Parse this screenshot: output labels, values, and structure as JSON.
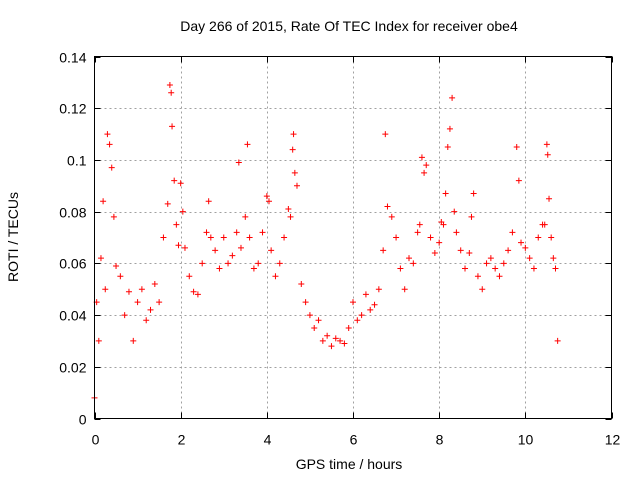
{
  "chart_data": {
    "type": "scatter",
    "title": "Day 266 of 2015, Rate Of TEC Index for receiver obe4",
    "xlabel": "GPS time / hours",
    "ylabel": "ROTI / TECUs",
    "xlim": [
      0,
      12
    ],
    "ylim": [
      0,
      0.14
    ],
    "xticks": [
      0,
      2,
      4,
      6,
      8,
      10,
      12
    ],
    "xtick_labels": [
      "0",
      "2",
      "4",
      "6",
      "8",
      "10",
      "12"
    ],
    "yticks": [
      0,
      0.02,
      0.04,
      0.06,
      0.08,
      0.1,
      0.12,
      0.14
    ],
    "ytick_labels": [
      "0",
      "0.02",
      "0.04",
      "0.06",
      "0.08",
      "0.1",
      "0.12",
      "0.14"
    ],
    "grid": true,
    "marker": "+",
    "series_color": "#ff0000",
    "series": [
      {
        "name": "ROTI",
        "points": [
          [
            0.0,
            0.008
          ],
          [
            0.05,
            0.045
          ],
          [
            0.1,
            0.03
          ],
          [
            0.15,
            0.062
          ],
          [
            0.2,
            0.084
          ],
          [
            0.25,
            0.05
          ],
          [
            0.3,
            0.11
          ],
          [
            0.35,
            0.106
          ],
          [
            0.4,
            0.097
          ],
          [
            0.45,
            0.078
          ],
          [
            0.5,
            0.059
          ],
          [
            0.6,
            0.055
          ],
          [
            0.7,
            0.04
          ],
          [
            0.8,
            0.049
          ],
          [
            0.9,
            0.03
          ],
          [
            1.0,
            0.045
          ],
          [
            1.1,
            0.05
          ],
          [
            1.2,
            0.038
          ],
          [
            1.3,
            0.042
          ],
          [
            1.4,
            0.052
          ],
          [
            1.5,
            0.045
          ],
          [
            1.6,
            0.07
          ],
          [
            1.7,
            0.083
          ],
          [
            1.75,
            0.129
          ],
          [
            1.78,
            0.126
          ],
          [
            1.8,
            0.113
          ],
          [
            1.85,
            0.092
          ],
          [
            1.9,
            0.075
          ],
          [
            1.95,
            0.067
          ],
          [
            2.0,
            0.091
          ],
          [
            2.05,
            0.08
          ],
          [
            2.1,
            0.066
          ],
          [
            2.2,
            0.055
          ],
          [
            2.3,
            0.049
          ],
          [
            2.4,
            0.048
          ],
          [
            2.5,
            0.06
          ],
          [
            2.6,
            0.072
          ],
          [
            2.65,
            0.084
          ],
          [
            2.7,
            0.07
          ],
          [
            2.8,
            0.065
          ],
          [
            2.9,
            0.058
          ],
          [
            3.0,
            0.07
          ],
          [
            3.1,
            0.06
          ],
          [
            3.2,
            0.063
          ],
          [
            3.3,
            0.072
          ],
          [
            3.35,
            0.099
          ],
          [
            3.4,
            0.066
          ],
          [
            3.5,
            0.078
          ],
          [
            3.55,
            0.106
          ],
          [
            3.6,
            0.07
          ],
          [
            3.7,
            0.058
          ],
          [
            3.8,
            0.06
          ],
          [
            3.9,
            0.072
          ],
          [
            4.0,
            0.086
          ],
          [
            4.05,
            0.084
          ],
          [
            4.1,
            0.065
          ],
          [
            4.2,
            0.055
          ],
          [
            4.3,
            0.06
          ],
          [
            4.4,
            0.07
          ],
          [
            4.5,
            0.081
          ],
          [
            4.55,
            0.078
          ],
          [
            4.6,
            0.104
          ],
          [
            4.62,
            0.11
          ],
          [
            4.65,
            0.095
          ],
          [
            4.7,
            0.09
          ],
          [
            4.8,
            0.052
          ],
          [
            4.9,
            0.045
          ],
          [
            5.0,
            0.04
          ],
          [
            5.1,
            0.035
          ],
          [
            5.2,
            0.038
          ],
          [
            5.3,
            0.03
          ],
          [
            5.4,
            0.032
          ],
          [
            5.5,
            0.028
          ],
          [
            5.6,
            0.031
          ],
          [
            5.7,
            0.03
          ],
          [
            5.8,
            0.029
          ],
          [
            5.9,
            0.035
          ],
          [
            6.0,
            0.045
          ],
          [
            6.1,
            0.038
          ],
          [
            6.2,
            0.04
          ],
          [
            6.3,
            0.048
          ],
          [
            6.4,
            0.042
          ],
          [
            6.5,
            0.044
          ],
          [
            6.6,
            0.05
          ],
          [
            6.7,
            0.065
          ],
          [
            6.75,
            0.11
          ],
          [
            6.8,
            0.082
          ],
          [
            6.9,
            0.078
          ],
          [
            7.0,
            0.07
          ],
          [
            7.1,
            0.058
          ],
          [
            7.2,
            0.05
          ],
          [
            7.3,
            0.062
          ],
          [
            7.4,
            0.06
          ],
          [
            7.5,
            0.072
          ],
          [
            7.55,
            0.075
          ],
          [
            7.6,
            0.101
          ],
          [
            7.65,
            0.095
          ],
          [
            7.7,
            0.098
          ],
          [
            7.8,
            0.07
          ],
          [
            7.9,
            0.064
          ],
          [
            8.0,
            0.068
          ],
          [
            8.05,
            0.076
          ],
          [
            8.1,
            0.075
          ],
          [
            8.15,
            0.087
          ],
          [
            8.2,
            0.105
          ],
          [
            8.25,
            0.112
          ],
          [
            8.3,
            0.124
          ],
          [
            8.35,
            0.08
          ],
          [
            8.4,
            0.072
          ],
          [
            8.5,
            0.065
          ],
          [
            8.6,
            0.058
          ],
          [
            8.7,
            0.064
          ],
          [
            8.75,
            0.078
          ],
          [
            8.8,
            0.087
          ],
          [
            8.9,
            0.055
          ],
          [
            9.0,
            0.05
          ],
          [
            9.1,
            0.06
          ],
          [
            9.2,
            0.062
          ],
          [
            9.3,
            0.058
          ],
          [
            9.4,
            0.055
          ],
          [
            9.5,
            0.06
          ],
          [
            9.6,
            0.065
          ],
          [
            9.7,
            0.072
          ],
          [
            9.8,
            0.105
          ],
          [
            9.85,
            0.092
          ],
          [
            9.9,
            0.068
          ],
          [
            10.0,
            0.066
          ],
          [
            10.1,
            0.062
          ],
          [
            10.2,
            0.058
          ],
          [
            10.3,
            0.07
          ],
          [
            10.4,
            0.075
          ],
          [
            10.45,
            0.075
          ],
          [
            10.5,
            0.106
          ],
          [
            10.52,
            0.102
          ],
          [
            10.55,
            0.085
          ],
          [
            10.6,
            0.07
          ],
          [
            10.65,
            0.062
          ],
          [
            10.7,
            0.058
          ],
          [
            10.75,
            0.03
          ]
        ]
      }
    ]
  }
}
